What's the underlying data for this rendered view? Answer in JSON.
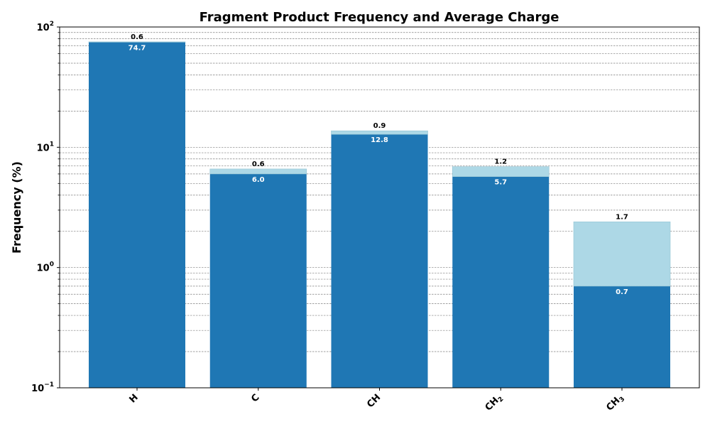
{
  "chart_data": {
    "type": "bar",
    "title": "Fragment Product Frequency and Average Charge",
    "xlabel": "",
    "ylabel": "Frequency (%)",
    "yscale": "log",
    "ylim": [
      0.1,
      100
    ],
    "yticks": [
      {
        "base": "10",
        "exp": "−1",
        "value": 0.1
      },
      {
        "base": "10",
        "exp": "0",
        "value": 1
      },
      {
        "base": "10",
        "exp": "1",
        "value": 10
      },
      {
        "base": "10",
        "exp": "2",
        "value": 100
      }
    ],
    "categories": [
      {
        "base": "H",
        "sub": ""
      },
      {
        "base": "C",
        "sub": ""
      },
      {
        "base": "CH",
        "sub": ""
      },
      {
        "base": "CH",
        "sub": "2"
      },
      {
        "base": "CH",
        "sub": "3"
      }
    ],
    "series": [
      {
        "values": [
          74.7,
          6.0,
          12.8,
          5.7,
          0.7
        ],
        "labels": [
          "74.7",
          "6.0",
          "12.8",
          "5.7",
          "0.7"
        ],
        "color": "#1f77b4"
      },
      {
        "values": [
          0.6,
          0.6,
          0.9,
          1.2,
          1.7
        ],
        "labels": [
          "0.6",
          "0.6",
          "0.9",
          "1.2",
          "1.7"
        ],
        "color": "#add8e6"
      }
    ],
    "stacked": true,
    "grid": "y-major-and-minor-dashed",
    "legend": "none"
  }
}
